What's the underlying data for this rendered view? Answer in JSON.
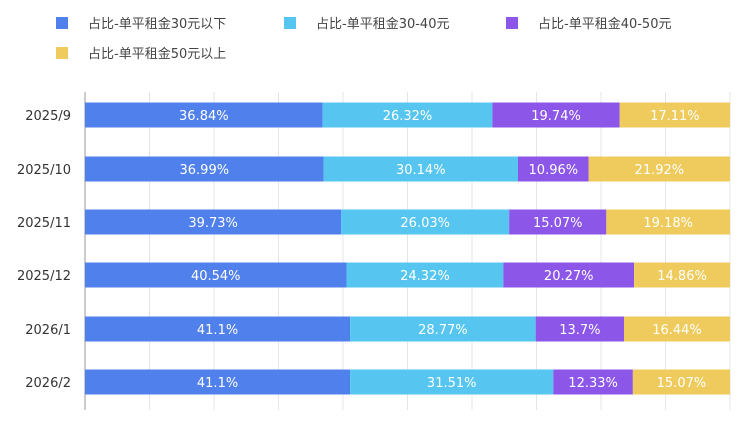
{
  "chart_data": {
    "type": "bar",
    "orientation": "horizontal",
    "stacked": "percent",
    "title": "",
    "xlabel": "",
    "ylabel": "",
    "xlim": [
      0,
      100
    ],
    "grid": true,
    "legend_position": "top-left",
    "categories": [
      "2025/9",
      "2025/10",
      "2025/11",
      "2025/12",
      "2026/1",
      "2026/2"
    ],
    "series": [
      {
        "name": "占比-单平租金30元以下",
        "color": "#5080ec",
        "values": [
          36.84,
          36.99,
          39.73,
          40.54,
          41.1,
          41.1
        ],
        "labels": [
          "36.84%",
          "36.99%",
          "39.73%",
          "40.54%",
          "41.1%",
          "41.1%"
        ]
      },
      {
        "name": "占比-单平租金30-40元",
        "color": "#56c6f0",
        "values": [
          26.32,
          30.14,
          26.03,
          24.32,
          28.77,
          31.51
        ],
        "labels": [
          "26.32%",
          "30.14%",
          "26.03%",
          "24.32%",
          "28.77%",
          "31.51%"
        ]
      },
      {
        "name": "占比-单平租金40-50元",
        "color": "#8c56e8",
        "values": [
          19.74,
          10.96,
          15.07,
          20.27,
          13.7,
          12.33
        ],
        "labels": [
          "19.74%",
          "10.96%",
          "15.07%",
          "20.27%",
          "13.7%",
          "12.33%"
        ]
      },
      {
        "name": "占比-单平租金50元以上",
        "color": "#eecb5c",
        "values": [
          17.11,
          21.92,
          19.18,
          14.86,
          16.44,
          15.07
        ],
        "labels": [
          "17.11%",
          "21.92%",
          "19.18%",
          "14.86%",
          "16.44%",
          "15.07%"
        ]
      }
    ]
  }
}
